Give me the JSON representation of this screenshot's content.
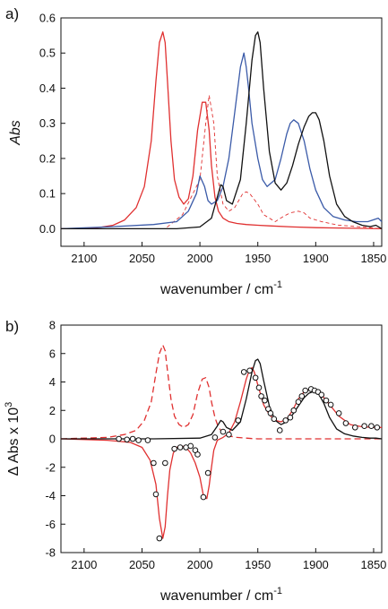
{
  "chart_data": [
    {
      "panel_label": "a)",
      "type": "line",
      "xlabel": "wavenumber / cm",
      "xlabel_sup": "-1",
      "ylabel": "Abs",
      "xlim": [
        2120,
        1843
      ],
      "ylim": [
        -0.05,
        0.6
      ],
      "x_ticks": [
        2100,
        2050,
        2000,
        1950,
        1900,
        1850
      ],
      "y_ticks": [
        "0.0",
        "0.1",
        "0.2",
        "0.3",
        "0.4",
        "0.5",
        "0.6"
      ],
      "y_tick_values": [
        0,
        0.1,
        0.2,
        0.3,
        0.4,
        0.5,
        0.6
      ],
      "series": [
        {
          "color": "#e03030",
          "style": "solid",
          "x": [
            2120,
            2090,
            2075,
            2065,
            2055,
            2048,
            2042,
            2038,
            2035,
            2032,
            2030,
            2028,
            2025,
            2022,
            2018,
            2014,
            2010,
            2006,
            2002,
            1998,
            1995,
            1992,
            1990,
            1987,
            1984,
            1980,
            1975,
            1968,
            1960,
            1950,
            1940,
            1920,
            1900,
            1880,
            1860,
            1843
          ],
          "y": [
            0.0,
            0.002,
            0.01,
            0.025,
            0.06,
            0.12,
            0.25,
            0.42,
            0.53,
            0.56,
            0.53,
            0.42,
            0.25,
            0.14,
            0.09,
            0.07,
            0.085,
            0.15,
            0.28,
            0.36,
            0.36,
            0.28,
            0.18,
            0.09,
            0.05,
            0.03,
            0.02,
            0.015,
            0.012,
            0.01,
            0.008,
            0.005,
            0.003,
            0.002,
            0.001,
            0.0
          ]
        },
        {
          "color": "#e03030",
          "style": "dashed",
          "x": [
            2120,
            2030,
            2015,
            2000,
            1995,
            1992,
            1988,
            1985,
            1980,
            1975,
            1970,
            1963,
            1960,
            1957,
            1950,
            1945,
            1935,
            1928,
            1922,
            1915,
            1910,
            1905,
            1895,
            1880,
            1860,
            1843
          ],
          "y": [
            0.0,
            0.0,
            0.04,
            0.14,
            0.3,
            0.38,
            0.3,
            0.15,
            0.07,
            0.05,
            0.06,
            0.1,
            0.105,
            0.1,
            0.07,
            0.04,
            0.02,
            0.035,
            0.045,
            0.05,
            0.045,
            0.03,
            0.02,
            0.01,
            0.005,
            0.0
          ]
        },
        {
          "color": "#3a5aa8",
          "style": "solid",
          "x": [
            2120,
            2080,
            2040,
            2020,
            2010,
            2003,
            2000,
            1996,
            1993,
            1990,
            1985,
            1980,
            1975,
            1970,
            1965,
            1962,
            1960,
            1958,
            1955,
            1950,
            1946,
            1942,
            1935,
            1930,
            1925,
            1922,
            1919,
            1915,
            1910,
            1905,
            1900,
            1893,
            1885,
            1875,
            1865,
            1855,
            1846,
            1843
          ],
          "y": [
            0.0,
            0.005,
            0.012,
            0.02,
            0.05,
            0.1,
            0.15,
            0.12,
            0.08,
            0.07,
            0.08,
            0.12,
            0.2,
            0.33,
            0.46,
            0.5,
            0.46,
            0.4,
            0.3,
            0.2,
            0.14,
            0.12,
            0.14,
            0.2,
            0.27,
            0.3,
            0.31,
            0.3,
            0.25,
            0.17,
            0.11,
            0.06,
            0.035,
            0.025,
            0.02,
            0.02,
            0.03,
            0.02
          ]
        },
        {
          "color": "#111111",
          "style": "solid",
          "x": [
            2120,
            2020,
            2000,
            1990,
            1985,
            1982,
            1980,
            1977,
            1972,
            1965,
            1960,
            1955,
            1952,
            1950,
            1948,
            1945,
            1940,
            1935,
            1930,
            1925,
            1920,
            1915,
            1910,
            1906,
            1903,
            1900,
            1897,
            1893,
            1888,
            1882,
            1875,
            1868,
            1860,
            1853,
            1848,
            1843
          ],
          "y": [
            0.0,
            0.0,
            0.005,
            0.03,
            0.09,
            0.125,
            0.12,
            0.08,
            0.07,
            0.14,
            0.3,
            0.48,
            0.55,
            0.56,
            0.53,
            0.4,
            0.22,
            0.13,
            0.11,
            0.13,
            0.18,
            0.24,
            0.29,
            0.32,
            0.33,
            0.33,
            0.31,
            0.25,
            0.15,
            0.07,
            0.035,
            0.02,
            0.01,
            0.006,
            0.01,
            0.0
          ]
        }
      ]
    },
    {
      "panel_label": "b)",
      "type": "line",
      "xlabel": "wavenumber / cm",
      "xlabel_sup": "-1",
      "ylabel": "Δ Abs x 10",
      "ylabel_sup": "3",
      "xlim": [
        2120,
        1843
      ],
      "ylim": [
        -8,
        8
      ],
      "x_ticks": [
        2100,
        2050,
        2000,
        1950,
        1900,
        1850
      ],
      "y_ticks": [
        "-8",
        "-6",
        "-4",
        "-2",
        "0",
        "2",
        "4",
        "6",
        "8"
      ],
      "y_tick_values": [
        -8,
        -6,
        -4,
        -2,
        0,
        2,
        4,
        6,
        8
      ],
      "series": [
        {
          "color": "#e03030",
          "style": "dashed",
          "x": [
            2120,
            2080,
            2065,
            2055,
            2048,
            2042,
            2038,
            2035,
            2032,
            2030,
            2028,
            2025,
            2022,
            2018,
            2014,
            2010,
            2006,
            2002,
            1998,
            1995,
            1992,
            1990,
            1987,
            1984,
            1980,
            1975,
            1968,
            1960,
            1955,
            1950,
            1943,
            1935,
            1920,
            1900,
            1880,
            1860,
            1843
          ],
          "y": [
            0.0,
            0.1,
            0.3,
            0.6,
            1.3,
            2.6,
            4.6,
            6.0,
            6.6,
            6.2,
            4.8,
            2.8,
            1.6,
            1.0,
            0.8,
            1.0,
            1.7,
            3.2,
            4.2,
            4.3,
            3.6,
            2.6,
            1.5,
            0.8,
            0.4,
            0.2,
            0.1,
            0.05,
            0.02,
            0.0,
            0.0,
            0.0,
            0.0,
            0.0,
            0.0,
            0.0,
            0.0
          ]
        },
        {
          "color": "#e03030",
          "style": "solid",
          "x": [
            2120,
            2080,
            2060,
            2050,
            2043,
            2038,
            2035,
            2032,
            2030,
            2028,
            2026,
            2023,
            2020,
            2016,
            2012,
            2008,
            2004,
            2000,
            1997,
            1994,
            1992,
            1990,
            1988,
            1985,
            1980,
            1975,
            1970,
            1965,
            1960,
            1957,
            1955,
            1953,
            1950,
            1945,
            1940,
            1935,
            1930,
            1925,
            1920,
            1915,
            1910,
            1905,
            1900,
            1895,
            1890,
            1880,
            1870,
            1860,
            1850,
            1843
          ],
          "y": [
            0.0,
            -0.1,
            -0.25,
            -0.6,
            -1.5,
            -3.2,
            -5.6,
            -7.0,
            -6.2,
            -4.0,
            -2.2,
            -1.0,
            -0.6,
            -0.5,
            -0.6,
            -1.0,
            -1.7,
            -2.7,
            -4.0,
            -4.2,
            -3.3,
            -2.0,
            -0.8,
            -0.1,
            0.1,
            0.4,
            1.2,
            2.6,
            4.2,
            4.9,
            5.0,
            4.7,
            3.8,
            2.4,
            1.7,
            1.3,
            1.2,
            1.4,
            2.0,
            2.8,
            3.3,
            3.5,
            3.4,
            3.1,
            2.6,
            1.6,
            1.0,
            0.85,
            0.8,
            0.8
          ]
        },
        {
          "color": "#111111",
          "style": "solid",
          "x": [
            2120,
            2040,
            2000,
            1990,
            1985,
            1982,
            1980,
            1977,
            1972,
            1965,
            1960,
            1955,
            1952,
            1950,
            1948,
            1945,
            1940,
            1935,
            1930,
            1925,
            1920,
            1915,
            1910,
            1906,
            1903,
            1900,
            1897,
            1893,
            1888,
            1882,
            1875,
            1868,
            1860,
            1853,
            1848,
            1843
          ],
          "y": [
            0.0,
            0.0,
            0.05,
            0.3,
            0.9,
            1.3,
            1.2,
            0.8,
            0.6,
            1.2,
            2.8,
            4.7,
            5.5,
            5.6,
            5.3,
            4.1,
            2.3,
            1.3,
            1.0,
            1.2,
            1.7,
            2.3,
            2.9,
            3.2,
            3.3,
            3.3,
            3.1,
            2.5,
            1.5,
            0.7,
            0.35,
            0.2,
            0.1,
            0.05,
            0.05,
            0.0
          ]
        }
      ],
      "markers": {
        "color": "#111111",
        "x": [
          2070,
          2063,
          2058,
          2053,
          2045,
          2040,
          2038,
          2035,
          2030,
          2022,
          2017,
          2012,
          2008,
          2004,
          2002,
          1997,
          1993,
          1987,
          1980,
          1975,
          1967,
          1962,
          1957,
          1952,
          1949,
          1947,
          1944,
          1941,
          1939,
          1936,
          1931,
          1926,
          1922,
          1919,
          1915,
          1912,
          1909,
          1904,
          1901,
          1898,
          1895,
          1891,
          1887,
          1880,
          1874,
          1866,
          1858,
          1852,
          1847
        ],
        "y": [
          0.0,
          -0.05,
          0.0,
          -0.1,
          -0.1,
          -1.7,
          -3.9,
          -7.0,
          -1.7,
          -0.7,
          -0.6,
          -0.6,
          -0.5,
          -0.8,
          -1.1,
          -4.1,
          -2.4,
          0.1,
          0.5,
          0.3,
          1.3,
          4.7,
          4.8,
          4.3,
          3.6,
          3.0,
          2.7,
          2.1,
          1.8,
          1.4,
          0.6,
          1.3,
          1.5,
          2.0,
          2.6,
          3.0,
          3.4,
          3.5,
          3.4,
          3.3,
          3.1,
          2.7,
          2.4,
          1.8,
          1.1,
          0.8,
          0.9,
          0.9,
          0.8
        ]
      }
    }
  ]
}
